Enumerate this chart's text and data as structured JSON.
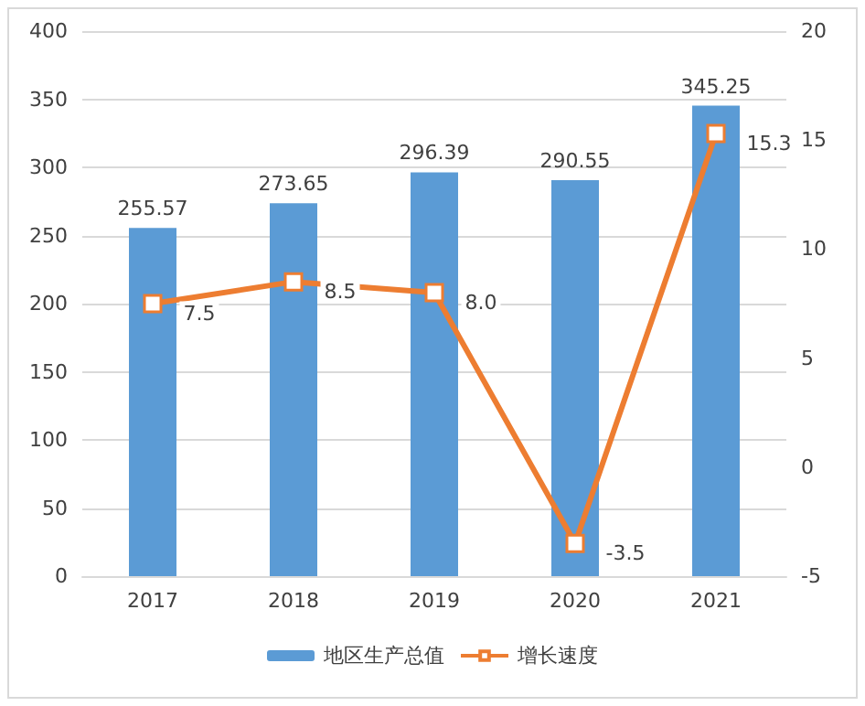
{
  "chart_data": {
    "type": "bar",
    "categories": [
      "2017",
      "2018",
      "2019",
      "2020",
      "2021"
    ],
    "series": [
      {
        "name": "地区生产总值",
        "color": "#5b9bd5",
        "values": [
          255.57,
          273.65,
          296.39,
          290.55,
          345.25
        ],
        "value_labels": [
          "255.57",
          "273.65",
          "296.39",
          "290.55",
          "345.25"
        ]
      },
      {
        "name": "增长速度",
        "type": "line",
        "axis": "y2",
        "color": "#ed7d31",
        "values": [
          7.5,
          8.5,
          8.0,
          -3.5,
          15.3
        ],
        "value_labels": [
          "7.5",
          "8.5",
          "8.0",
          "-3.5",
          "15.3"
        ],
        "marker": "square"
      }
    ],
    "ylim": [
      0,
      400
    ],
    "yticks": [
      0,
      50,
      100,
      150,
      200,
      250,
      300,
      350,
      400
    ],
    "y2lim": [
      -5,
      20
    ],
    "y2ticks": [
      -5,
      0,
      5,
      10,
      15,
      20
    ],
    "grid": "y",
    "legend": "bottom"
  }
}
